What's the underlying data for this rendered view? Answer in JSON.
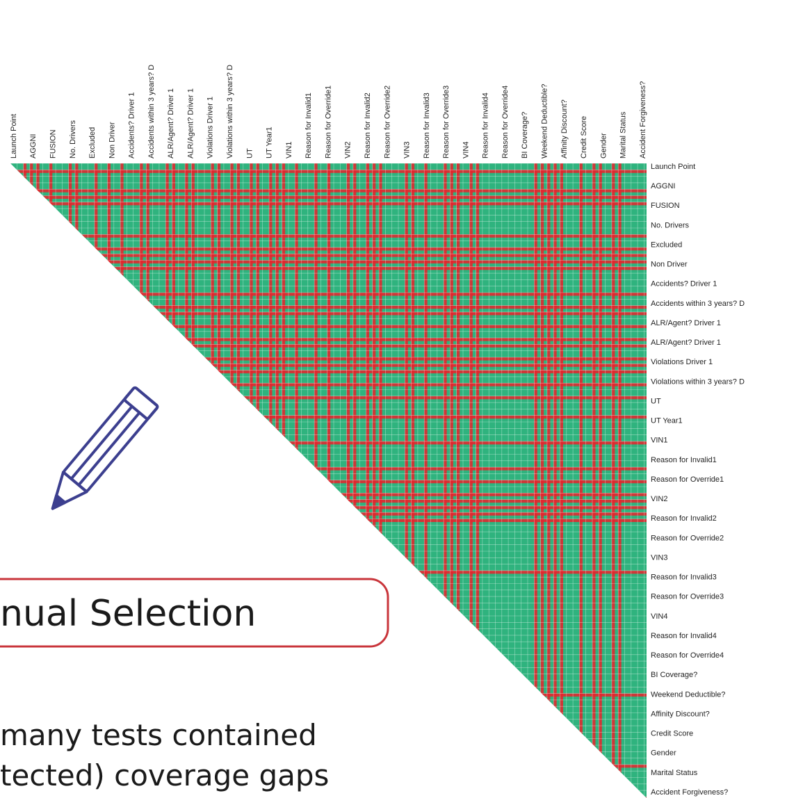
{
  "matrix": {
    "labels": [
      "Launch Point",
      "AGGNI",
      "FUSION",
      "No. Drivers",
      "Excluded",
      "Non Driver",
      "Accidents? Driver 1",
      "Accidents within 3 years? D",
      "ALR/Agent? Driver 1",
      "ALR/Agent? Driver 1",
      "Violations Driver 1",
      "Violations within 3 years? D",
      "UT",
      "UT Year1",
      "VIN1",
      "Reason for Invalid1",
      "Reason for Override1",
      "VIN2",
      "Reason for Invalid2",
      "Reason for Override2",
      "VIN3",
      "Reason for Invalid3",
      "Reason for Override3",
      "VIN4",
      "Reason for Invalid4",
      "Reason for Override4",
      "BI Coverage?",
      "Weekend Deductible?",
      "Affinity Discount?",
      "Credit Score",
      "Gender",
      "Marital Status",
      "Accident Forgiveness?"
    ]
  },
  "callout": {
    "title": "nual Selection"
  },
  "body": {
    "lines": [
      "many tests contained",
      "tected) coverage gaps"
    ]
  }
}
